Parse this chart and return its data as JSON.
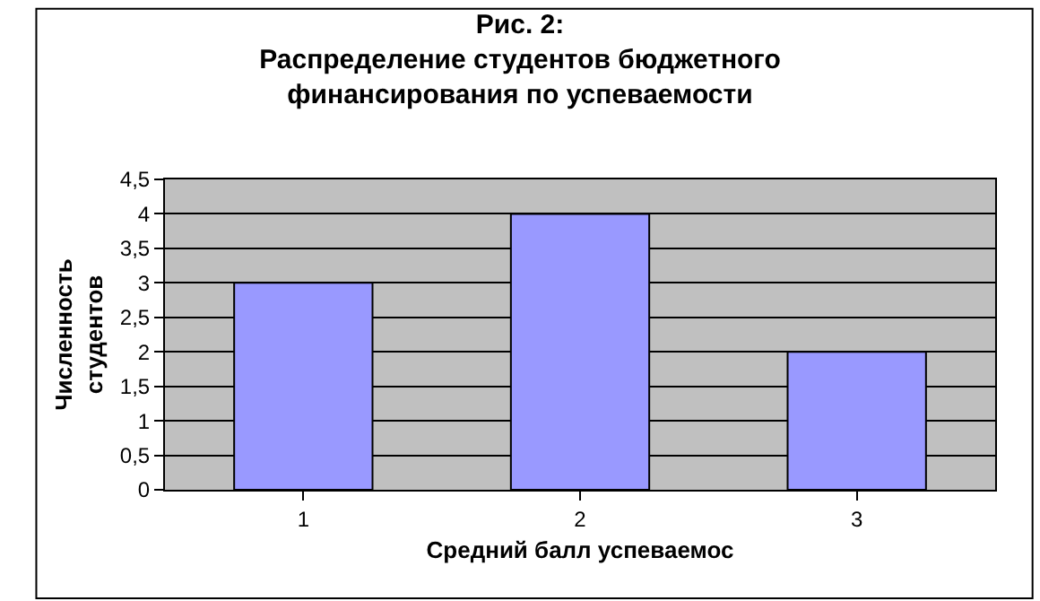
{
  "chart_data": {
    "type": "bar",
    "title": "Рис. 2:\nРаспределение студентов бюджетного\nфинансирования по успеваемости",
    "xlabel": "Средний балл успеваемос",
    "ylabel": "Численность\nстудентов",
    "categories": [
      "1",
      "2",
      "3"
    ],
    "values": [
      3,
      4,
      2
    ],
    "color": "#9999ff",
    "ylim": [
      0,
      4.5
    ],
    "yticks": [
      0,
      {
        "value": 0.5,
        "label": "0,5"
      },
      1,
      {
        "value": 1.5,
        "label": "1,5"
      },
      2,
      {
        "value": 2.5,
        "label": "2,5"
      },
      3,
      {
        "value": 3.5,
        "label": "3,5"
      },
      4,
      {
        "value": 4.5,
        "label": "4,5"
      }
    ],
    "grid": "y"
  }
}
